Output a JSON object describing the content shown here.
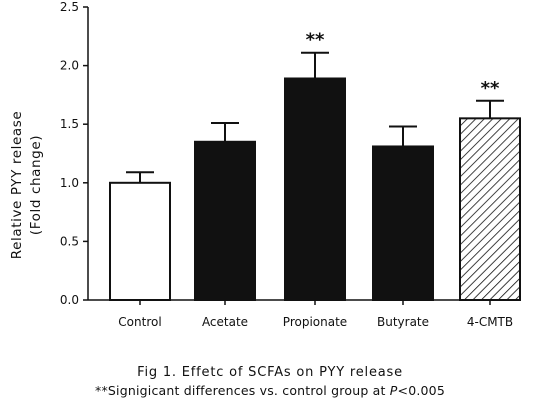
{
  "chart_data": {
    "type": "bar",
    "categories": [
      "Control",
      "Acetate",
      "Propionate",
      "Butyrate",
      "4-CMTB"
    ],
    "values": [
      1.0,
      1.35,
      1.89,
      1.31,
      1.55
    ],
    "error_upper": [
      0.09,
      0.16,
      0.22,
      0.17,
      0.15
    ],
    "significance": [
      "",
      "",
      "**",
      "",
      "**"
    ],
    "bar_styles": [
      "white",
      "black",
      "black",
      "black",
      "hatched"
    ],
    "ylabel_line1": "Relative PYY release",
    "ylabel_line2": "(Fold change)",
    "ylim": [
      0,
      2.5
    ],
    "yticks": [
      "0.0",
      "0.5",
      "1.0",
      "1.5",
      "2.0",
      "2.5"
    ],
    "grid": false
  },
  "caption": {
    "title": "Fig 1. Effetc of SCFAs on PYY release",
    "note_prefix": "**Signigicant differences vs. control group at ",
    "note_p": "P",
    "note_suffix": "<0.005"
  },
  "colors": {
    "bar_fill": "#111111",
    "outline": "#111111",
    "background": "#ffffff"
  }
}
